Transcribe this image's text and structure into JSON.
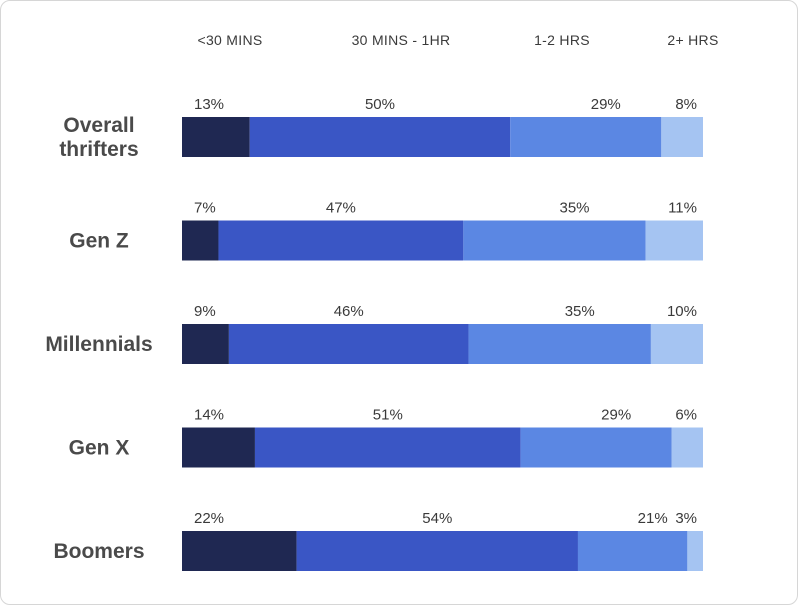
{
  "chart_data": {
    "type": "bar",
    "orientation": "horizontal",
    "stacked": true,
    "normalized": true,
    "title": "",
    "xlabel": "",
    "ylabel": "",
    "xlim": [
      0,
      100
    ],
    "grid": false,
    "legend_position": "top",
    "categories": [
      "Overall\nthrifters",
      "Gen Z",
      "Millennials",
      "Gen X",
      "Boomers"
    ],
    "series": [
      {
        "name": "<30 MINS",
        "color": "#1f2852",
        "values": [
          13,
          7,
          9,
          14,
          22
        ]
      },
      {
        "name": "30 MINS - 1HR",
        "color": "#3a56c5",
        "values": [
          50,
          47,
          46,
          51,
          54
        ]
      },
      {
        "name": "1-2 HRS",
        "color": "#5b87e3",
        "values": [
          29,
          35,
          35,
          29,
          21
        ]
      },
      {
        "name": "2+ HRS",
        "color": "#a5c4f2",
        "values": [
          8,
          11,
          10,
          6,
          3
        ]
      }
    ],
    "value_suffix": "%"
  }
}
